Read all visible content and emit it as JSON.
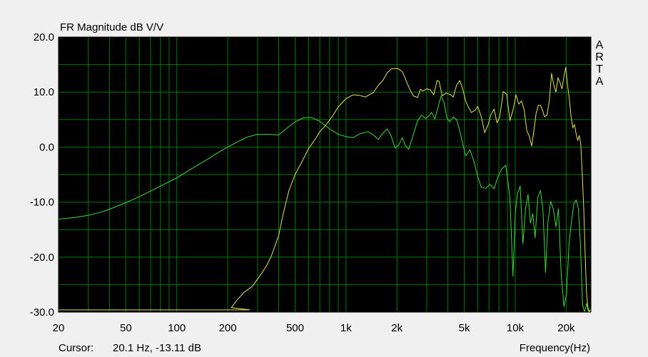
{
  "title": "FR Magnitude dB V/V",
  "brand_letters": [
    "A",
    "R",
    "T",
    "A"
  ],
  "cursor_label": "Cursor:",
  "cursor_value": "20.1 Hz, -13.11 dB",
  "x_axis_label": "Frequency(Hz)",
  "colors": {
    "plot_bg": "#000000",
    "grid": "#007a00",
    "window_bg": "#f0f0f0",
    "green_trace": "#3ed83e",
    "yellow_trace": "#e3e05a"
  },
  "chart_data": {
    "type": "line",
    "title": "FR Magnitude dB V/V",
    "xlabel": "Frequency(Hz)",
    "ylabel": "",
    "x_scale": "log",
    "xlim": [
      20,
      28000
    ],
    "ylim": [
      -30,
      20
    ],
    "grid": true,
    "x_tick_labels": [
      {
        "value": 20,
        "label": "20"
      },
      {
        "value": 50,
        "label": "50"
      },
      {
        "value": 100,
        "label": "100"
      },
      {
        "value": 200,
        "label": "200"
      },
      {
        "value": 500,
        "label": "500"
      },
      {
        "value": 1000,
        "label": "1k"
      },
      {
        "value": 2000,
        "label": "2k"
      },
      {
        "value": 5000,
        "label": "5k"
      },
      {
        "value": 10000,
        "label": "10k"
      },
      {
        "value": 20000,
        "label": "20k"
      }
    ],
    "y_tick_labels": [
      {
        "value": 20,
        "label": "20.0"
      },
      {
        "value": 10,
        "label": "10.0"
      },
      {
        "value": 0,
        "label": "0.0"
      },
      {
        "value": -10,
        "label": "-10.0"
      },
      {
        "value": -20,
        "label": "-20.0"
      },
      {
        "value": -30,
        "label": "-30.0"
      }
    ],
    "series": [
      {
        "color": "#3ed83e",
        "points": [
          [
            20,
            -13.1
          ],
          [
            25,
            -12.8
          ],
          [
            30,
            -12.4
          ],
          [
            35,
            -11.9
          ],
          [
            40,
            -11.3
          ],
          [
            50,
            -10.1
          ],
          [
            60,
            -9.0
          ],
          [
            70,
            -8.0
          ],
          [
            80,
            -7.1
          ],
          [
            100,
            -5.6
          ],
          [
            120,
            -4.1
          ],
          [
            150,
            -2.3
          ],
          [
            180,
            -0.8
          ],
          [
            200,
            0.0
          ],
          [
            230,
            1.0
          ],
          [
            260,
            1.8
          ],
          [
            300,
            2.3
          ],
          [
            350,
            2.3
          ],
          [
            400,
            2.2
          ],
          [
            450,
            3.5
          ],
          [
            500,
            4.6
          ],
          [
            560,
            5.3
          ],
          [
            620,
            5.4
          ],
          [
            700,
            4.7
          ],
          [
            800,
            3.3
          ],
          [
            900,
            2.3
          ],
          [
            1000,
            1.9
          ],
          [
            1100,
            1.7
          ],
          [
            1200,
            2.4
          ],
          [
            1350,
            2.8
          ],
          [
            1450,
            2.2
          ],
          [
            1550,
            1.4
          ],
          [
            1650,
            2.5
          ],
          [
            1750,
            3.3
          ],
          [
            1850,
            2.0
          ],
          [
            1950,
            -0.2
          ],
          [
            2050,
            0.4
          ],
          [
            2150,
            1.7
          ],
          [
            2250,
            0.2
          ],
          [
            2350,
            -0.4
          ],
          [
            2500,
            2.3
          ],
          [
            2650,
            4.8
          ],
          [
            2800,
            5.8
          ],
          [
            2950,
            5.2
          ],
          [
            3100,
            5.7
          ],
          [
            3200,
            6.3
          ],
          [
            3350,
            5.1
          ],
          [
            3500,
            7.3
          ],
          [
            3650,
            9.3
          ],
          [
            3800,
            8.0
          ],
          [
            3950,
            5.3
          ],
          [
            4100,
            4.6
          ],
          [
            4300,
            5.5
          ],
          [
            4500,
            5.0
          ],
          [
            4700,
            3.0
          ],
          [
            4900,
            0.5
          ],
          [
            5100,
            -1.6
          ],
          [
            5400,
            -0.5
          ],
          [
            5700,
            -2.6
          ],
          [
            6000,
            -5.4
          ],
          [
            6300,
            -7.3
          ],
          [
            6700,
            -7.5
          ],
          [
            7100,
            -6.8
          ],
          [
            7500,
            -7.6
          ],
          [
            7900,
            -5.4
          ],
          [
            8300,
            -4.0
          ],
          [
            8800,
            -3.3
          ],
          [
            9300,
            -9.2
          ],
          [
            9700,
            -23.5
          ],
          [
            10000,
            -12.1
          ],
          [
            10300,
            -8.5
          ],
          [
            10700,
            -7.1
          ],
          [
            11100,
            -17.6
          ],
          [
            11500,
            -11.2
          ],
          [
            11900,
            -8.6
          ],
          [
            12300,
            -13.8
          ],
          [
            12700,
            -12.1
          ],
          [
            13100,
            -16.5
          ],
          [
            13600,
            -9.1
          ],
          [
            14100,
            -7.9
          ],
          [
            14600,
            -11.6
          ],
          [
            15100,
            -22.8
          ],
          [
            15600,
            -13.6
          ],
          [
            16200,
            -9.9
          ],
          [
            16800,
            -11.3
          ],
          [
            17400,
            -14.5
          ],
          [
            18000,
            -11.2
          ],
          [
            18700,
            -23.2
          ],
          [
            19400,
            -29.0
          ],
          [
            20100,
            -26.6
          ],
          [
            20800,
            -17.5
          ],
          [
            21500,
            -13.5
          ],
          [
            22200,
            -10.3
          ],
          [
            22900,
            -9.6
          ],
          [
            23600,
            -11.1
          ],
          [
            24300,
            -18.0
          ],
          [
            25000,
            -28.7
          ],
          [
            25700,
            -30.0
          ],
          [
            26400,
            -28.4
          ],
          [
            27100,
            -30.0
          ],
          [
            28000,
            -29.5
          ]
        ]
      },
      {
        "color": "#e3e05a",
        "points": [
          [
            20,
            -29.6
          ],
          [
            150,
            -29.6
          ],
          [
            270,
            -29.6
          ],
          [
            210,
            -29.2
          ],
          [
            230,
            -27.6
          ],
          [
            250,
            -26.4
          ],
          [
            280,
            -25.3
          ],
          [
            300,
            -24.0
          ],
          [
            320,
            -22.8
          ],
          [
            340,
            -21.5
          ],
          [
            360,
            -20.0
          ],
          [
            380,
            -18.0
          ],
          [
            400,
            -16.1
          ],
          [
            420,
            -12.9
          ],
          [
            440,
            -10.3
          ],
          [
            460,
            -7.9
          ],
          [
            500,
            -5.0
          ],
          [
            550,
            -2.6
          ],
          [
            600,
            -0.3
          ],
          [
            650,
            1.2
          ],
          [
            700,
            2.8
          ],
          [
            760,
            4.0
          ],
          [
            830,
            5.6
          ],
          [
            900,
            7.3
          ],
          [
            1000,
            8.8
          ],
          [
            1100,
            9.5
          ],
          [
            1200,
            9.4
          ],
          [
            1300,
            9.1
          ],
          [
            1450,
            9.9
          ],
          [
            1550,
            11.2
          ],
          [
            1650,
            12.1
          ],
          [
            1750,
            13.5
          ],
          [
            1850,
            14.2
          ],
          [
            1950,
            14.3
          ],
          [
            2050,
            14.2
          ],
          [
            2150,
            13.7
          ],
          [
            2250,
            12.3
          ],
          [
            2350,
            10.9
          ],
          [
            2500,
            9.3
          ],
          [
            2650,
            9.0
          ],
          [
            2750,
            10.5
          ],
          [
            2850,
            10.2
          ],
          [
            3000,
            10.6
          ],
          [
            3150,
            10.4
          ],
          [
            3300,
            9.5
          ],
          [
            3450,
            12.1
          ],
          [
            3550,
            11.9
          ],
          [
            3700,
            9.3
          ],
          [
            3900,
            9.8
          ],
          [
            4100,
            9.6
          ],
          [
            4300,
            9.1
          ],
          [
            4500,
            11.2
          ],
          [
            4700,
            12.1
          ],
          [
            4900,
            10.5
          ],
          [
            5100,
            8.3
          ],
          [
            5300,
            7.2
          ],
          [
            5500,
            6.3
          ],
          [
            5800,
            6.7
          ],
          [
            6000,
            7.4
          ],
          [
            6300,
            5.5
          ],
          [
            6600,
            2.6
          ],
          [
            6900,
            4.0
          ],
          [
            7200,
            6.0
          ],
          [
            7500,
            6.9
          ],
          [
            7800,
            4.4
          ],
          [
            8100,
            5.5
          ],
          [
            8500,
            10.1
          ],
          [
            8900,
            9.6
          ],
          [
            9300,
            4.8
          ],
          [
            9700,
            6.7
          ],
          [
            10100,
            9.5
          ],
          [
            10500,
            7.8
          ],
          [
            10900,
            8.4
          ],
          [
            11300,
            6.7
          ],
          [
            11700,
            3.0
          ],
          [
            12100,
            2.0
          ],
          [
            12500,
            0.2
          ],
          [
            12900,
            3.1
          ],
          [
            13300,
            6.2
          ],
          [
            13700,
            7.6
          ],
          [
            14100,
            7.6
          ],
          [
            14500,
            6.7
          ],
          [
            14900,
            5.5
          ],
          [
            15400,
            5.8
          ],
          [
            15900,
            8.4
          ],
          [
            16400,
            13.4
          ],
          [
            16900,
            11.3
          ],
          [
            17400,
            10.0
          ],
          [
            17900,
            12.6
          ],
          [
            18400,
            11.7
          ],
          [
            18900,
            10.6
          ],
          [
            19400,
            12.9
          ],
          [
            19900,
            14.5
          ],
          [
            20400,
            11.1
          ],
          [
            20900,
            8.6
          ],
          [
            21400,
            5.4
          ],
          [
            21900,
            3.5
          ],
          [
            22400,
            4.1
          ],
          [
            22900,
            2.4
          ],
          [
            23400,
            1.2
          ],
          [
            23900,
            2.1
          ],
          [
            24400,
            0.5
          ],
          [
            24900,
            -4.9
          ],
          [
            25400,
            -11.3
          ],
          [
            25900,
            -19.7
          ],
          [
            26400,
            -26.6
          ],
          [
            26900,
            -29.2
          ],
          [
            27400,
            -30.0
          ],
          [
            28000,
            -29.5
          ]
        ]
      }
    ]
  }
}
